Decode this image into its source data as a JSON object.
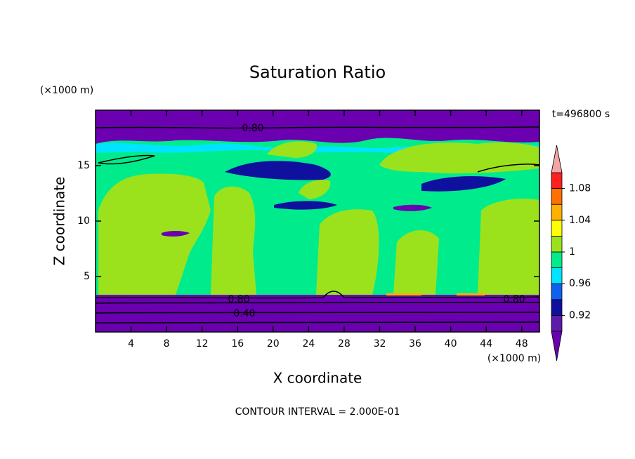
{
  "chart_data": {
    "type": "contour",
    "title": "Saturation Ratio",
    "x_label": "X coordinate",
    "y_label": "Z coordinate",
    "x_unit_label": "(×1000 m)",
    "y_unit_label": "(×1000 m)",
    "time_label": "t=496800 s",
    "footer": "CONTOUR INTERVAL = 2.000E-01",
    "contour_labels": [
      "0.80",
      "0.80",
      "0.40",
      "0.80"
    ],
    "xlim": [
      0,
      50
    ],
    "ylim": [
      0,
      20
    ],
    "xticks": [
      4,
      8,
      12,
      16,
      20,
      24,
      28,
      32,
      36,
      40,
      44,
      48
    ],
    "yticks": [
      5,
      10,
      15
    ],
    "colorbar": {
      "levels": [
        0.9,
        0.92,
        0.94,
        0.96,
        0.98,
        1,
        1.02,
        1.04,
        1.06,
        1.08,
        1.1
      ],
      "colors": [
        "#5e1aa8",
        "#10109e",
        "#1060f0",
        "#00e4ff",
        "#00ec8c",
        "#9be21d",
        "#ffff00",
        "#ffb000",
        "#ff7000",
        "#ff2020"
      ],
      "under_color": "#6a00b0",
      "over_color": "#f4a4a4",
      "ticks": [
        0.92,
        0.96,
        1,
        1.04,
        1.08
      ]
    }
  }
}
